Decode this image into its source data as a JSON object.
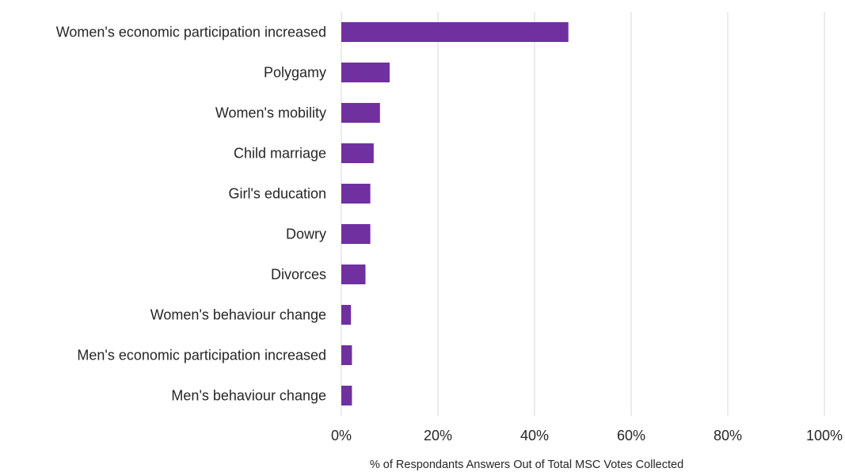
{
  "chart_data": {
    "type": "bar",
    "orientation": "horizontal",
    "categories": [
      "Women's economic participation increased",
      "Polygamy",
      "Women's mobility",
      "Child marriage",
      "Girl's education",
      "Dowry",
      "Divorces",
      "Women's behaviour change",
      "Men's economic participation increased",
      "Men's behaviour change"
    ],
    "values": [
      47,
      10,
      8,
      6.7,
      6,
      6,
      5,
      2,
      2.2,
      2.2
    ],
    "value_unit": "%",
    "xlabel": "% of Respondants Answers Out of Total MSC Votes Collected",
    "ylabel": "",
    "xlim": [
      0,
      100
    ],
    "xticks": [
      "0%",
      "20%",
      "40%",
      "60%",
      "80%",
      "100%"
    ],
    "grid": "vertical",
    "legend": "none",
    "colors": {
      "bar": "#7030a0",
      "grid": "#d9d9d9",
      "text": "#262626"
    }
  }
}
